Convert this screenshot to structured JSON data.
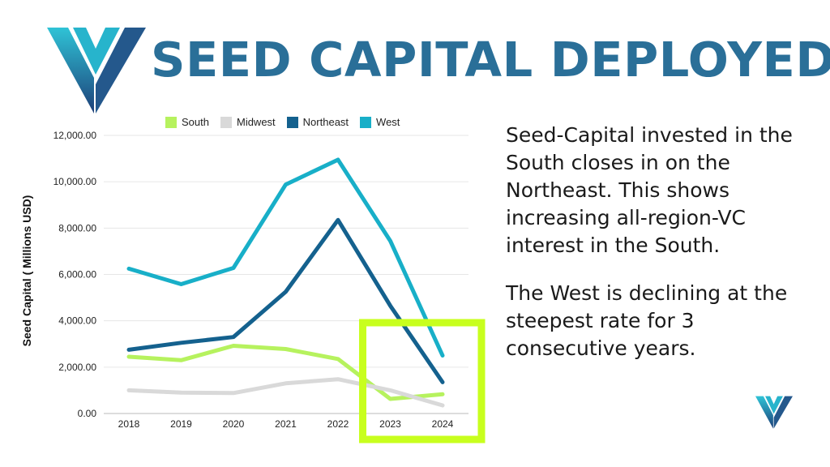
{
  "header": {
    "title": "SEED CAPITAL DEPLOYED",
    "logo": "v-logo-icon"
  },
  "colors": {
    "title": "#2a6f98",
    "South": "#b6f25e",
    "Midwest": "#d9d9d9",
    "Northeast": "#14618e",
    "West": "#18afc8",
    "highlight": "#c8ff1e"
  },
  "commentary": {
    "para1": "Seed-Capital invested in the South closes in on the Northeast. This shows increasing all-region-VC interest in the South.",
    "para2": "The West is declining at the steepest rate for 3 consecutive years."
  },
  "chart_data": {
    "type": "line",
    "title": "",
    "xlabel": "",
    "ylabel": "Seed Capital ( Millions USD)",
    "categories": [
      "2018",
      "2019",
      "2020",
      "2021",
      "2022",
      "2023",
      "2024"
    ],
    "ylim": [
      0,
      12000
    ],
    "yticks": [
      "0.00",
      "2,000.00",
      "4,000.00",
      "6,000.00",
      "8,000.00",
      "10,000.00",
      "12,000.00"
    ],
    "legend_position": "top",
    "grid": true,
    "series": [
      {
        "name": "South",
        "values": [
          2450,
          2300,
          2920,
          2780,
          2350,
          630,
          830
        ]
      },
      {
        "name": "Midwest",
        "values": [
          1000,
          900,
          880,
          1300,
          1480,
          1000,
          350
        ]
      },
      {
        "name": "Northeast",
        "values": [
          2750,
          3050,
          3300,
          5250,
          8350,
          4650,
          1350
        ]
      },
      {
        "name": "West",
        "values": [
          6250,
          5580,
          6280,
          9880,
          10950,
          7450,
          2500
        ]
      }
    ],
    "highlight_categories": [
      "2023",
      "2024"
    ]
  }
}
